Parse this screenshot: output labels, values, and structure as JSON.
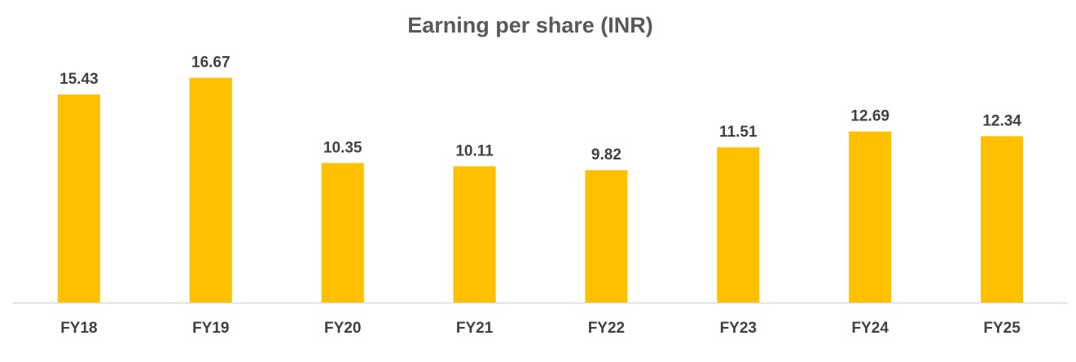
{
  "chart_data": {
    "type": "bar",
    "title": "Earning per share (INR)",
    "xlabel": "",
    "ylabel": "",
    "categories": [
      "FY18",
      "FY19",
      "FY20",
      "FY21",
      "FY22",
      "FY23",
      "FY24",
      "FY25"
    ],
    "values": [
      15.43,
      16.67,
      10.35,
      10.11,
      9.82,
      11.51,
      12.69,
      12.34
    ],
    "value_labels": [
      "15.43",
      "16.67",
      "10.35",
      "10.11",
      "9.82",
      "11.51",
      "12.69",
      "12.34"
    ],
    "ylim": [
      0,
      18
    ],
    "grid": false,
    "legend": "none",
    "colors": {
      "bar": "#FFC000",
      "axis": "#D9D9D9",
      "title": "#595959",
      "labels": "#404040"
    }
  }
}
